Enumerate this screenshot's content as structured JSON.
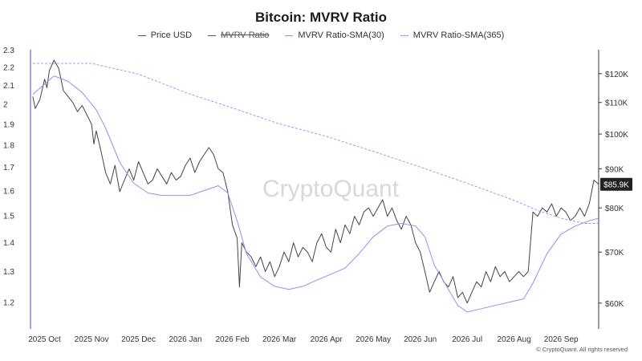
{
  "chart_data": {
    "type": "line",
    "title": "Bitcoin: MVRV Ratio",
    "legend": [
      {
        "name": "Price USD",
        "style": "solid",
        "color": "#555555",
        "enabled": true
      },
      {
        "name": "MVRV Ratio",
        "style": "solid",
        "color": "#555555",
        "enabled": false
      },
      {
        "name": "MVRV Ratio-SMA(30)",
        "style": "solid",
        "color": "#9b8cf0",
        "enabled": true
      },
      {
        "name": "MVRV Ratio-SMA(365)",
        "style": "dashed",
        "color": "#9b8cf0",
        "enabled": true
      }
    ],
    "legend_position": "top-center",
    "x_labels": [
      "2025 Oct",
      "2025 Nov",
      "2025 Dec",
      "2026 Jan",
      "2026 Feb",
      "2026 Mar",
      "2026 Apr",
      "2026 May",
      "2026 Jun",
      "2026 Jul",
      "2026 Aug",
      "2026 Sep"
    ],
    "x_range_months": [
      -0.3,
      11.8
    ],
    "left_axis": {
      "ticks": [
        1.2,
        1.3,
        1.4,
        1.5,
        1.6,
        1.7,
        1.8,
        1.9,
        2,
        2.1,
        2.2,
        2.3
      ],
      "range": [
        1.12,
        2.3
      ],
      "scale": "log"
    },
    "right_axis": {
      "ticks": [
        "$60K",
        "$70K",
        "$80K",
        "$90K",
        "$100K",
        "$110K",
        "$120K"
      ],
      "values": [
        60000,
        70000,
        80000,
        90000,
        100000,
        110000,
        120000
      ],
      "range": [
        55500,
        129000
      ],
      "scale": "log"
    },
    "current_price_label": "$85.9K",
    "current_price_value": 85900,
    "grid": false,
    "series": [
      {
        "name": "Price USD",
        "axis": "right",
        "points": [
          [
            -0.25,
            112000
          ],
          [
            -0.2,
            108000
          ],
          [
            -0.1,
            111000
          ],
          [
            0,
            118000
          ],
          [
            0.05,
            115000
          ],
          [
            0.1,
            121000
          ],
          [
            0.2,
            125000
          ],
          [
            0.3,
            122000
          ],
          [
            0.4,
            114000
          ],
          [
            0.5,
            112000
          ],
          [
            0.6,
            110000
          ],
          [
            0.7,
            107000
          ],
          [
            0.8,
            109000
          ],
          [
            0.9,
            106000
          ],
          [
            1.0,
            103000
          ],
          [
            1.05,
            97000
          ],
          [
            1.1,
            101000
          ],
          [
            1.2,
            95000
          ],
          [
            1.3,
            89000
          ],
          [
            1.4,
            86000
          ],
          [
            1.5,
            91000
          ],
          [
            1.6,
            84000
          ],
          [
            1.7,
            87000
          ],
          [
            1.8,
            90000
          ],
          [
            1.9,
            87000
          ],
          [
            2.0,
            92000
          ],
          [
            2.1,
            89000
          ],
          [
            2.2,
            86000
          ],
          [
            2.3,
            87000
          ],
          [
            2.4,
            90000
          ],
          [
            2.5,
            88000
          ],
          [
            2.6,
            86000
          ],
          [
            2.7,
            89000
          ],
          [
            2.8,
            87000
          ],
          [
            2.9,
            88000
          ],
          [
            3.0,
            91000
          ],
          [
            3.1,
            93000
          ],
          [
            3.2,
            89000
          ],
          [
            3.3,
            92000
          ],
          [
            3.5,
            96000
          ],
          [
            3.6,
            94000
          ],
          [
            3.7,
            90000
          ],
          [
            3.8,
            89000
          ],
          [
            3.9,
            84000
          ],
          [
            4.0,
            76000
          ],
          [
            4.1,
            73000
          ],
          [
            4.15,
            63000
          ],
          [
            4.2,
            72000
          ],
          [
            4.3,
            70000
          ],
          [
            4.4,
            69000
          ],
          [
            4.5,
            67000
          ],
          [
            4.6,
            69000
          ],
          [
            4.7,
            66000
          ],
          [
            4.8,
            68000
          ],
          [
            4.9,
            65000
          ],
          [
            5.0,
            67000
          ],
          [
            5.1,
            70000
          ],
          [
            5.2,
            68000
          ],
          [
            5.3,
            72000
          ],
          [
            5.4,
            69000
          ],
          [
            5.5,
            71000
          ],
          [
            5.6,
            70000
          ],
          [
            5.7,
            68000
          ],
          [
            5.8,
            72000
          ],
          [
            5.9,
            74000
          ],
          [
            6.0,
            71000
          ],
          [
            6.1,
            70000
          ],
          [
            6.2,
            75000
          ],
          [
            6.3,
            72000
          ],
          [
            6.4,
            76000
          ],
          [
            6.5,
            74000
          ],
          [
            6.6,
            78000
          ],
          [
            6.7,
            76000
          ],
          [
            6.8,
            79000
          ],
          [
            6.9,
            80000
          ],
          [
            7.0,
            78000
          ],
          [
            7.1,
            80000
          ],
          [
            7.2,
            82000
          ],
          [
            7.3,
            78000
          ],
          [
            7.4,
            80000
          ],
          [
            7.5,
            77000
          ],
          [
            7.6,
            75000
          ],
          [
            7.7,
            78000
          ],
          [
            7.8,
            76000
          ],
          [
            7.9,
            72000
          ],
          [
            8.0,
            70000
          ],
          [
            8.1,
            66000
          ],
          [
            8.2,
            62000
          ],
          [
            8.3,
            64000
          ],
          [
            8.4,
            66000
          ],
          [
            8.5,
            64000
          ],
          [
            8.6,
            63000
          ],
          [
            8.7,
            65000
          ],
          [
            8.8,
            61000
          ],
          [
            8.9,
            62000
          ],
          [
            9.0,
            60000
          ],
          [
            9.1,
            62000
          ],
          [
            9.2,
            64000
          ],
          [
            9.3,
            63000
          ],
          [
            9.4,
            66000
          ],
          [
            9.5,
            64000
          ],
          [
            9.6,
            67000
          ],
          [
            9.7,
            65000
          ],
          [
            9.8,
            66000
          ],
          [
            9.9,
            64000
          ],
          [
            10.0,
            65000
          ],
          [
            10.1,
            66000
          ],
          [
            10.2,
            65000
          ],
          [
            10.3,
            66000
          ],
          [
            10.4,
            79000
          ],
          [
            10.5,
            78000
          ],
          [
            10.6,
            80000
          ],
          [
            10.7,
            79000
          ],
          [
            10.8,
            81000
          ],
          [
            10.9,
            78000
          ],
          [
            11.0,
            80000
          ],
          [
            11.1,
            79000
          ],
          [
            11.2,
            77000
          ],
          [
            11.3,
            78000
          ],
          [
            11.4,
            80000
          ],
          [
            11.5,
            78000
          ],
          [
            11.6,
            81000
          ],
          [
            11.7,
            87000
          ],
          [
            11.8,
            85900
          ]
        ]
      },
      {
        "name": "MVRV Ratio-SMA(30)",
        "axis": "left",
        "points": [
          [
            -0.25,
            2.05
          ],
          [
            0.2,
            2.15
          ],
          [
            0.5,
            2.12
          ],
          [
            0.8,
            2.06
          ],
          [
            1.1,
            1.97
          ],
          [
            1.3,
            1.88
          ],
          [
            1.6,
            1.72
          ],
          [
            1.9,
            1.63
          ],
          [
            2.2,
            1.59
          ],
          [
            2.5,
            1.58
          ],
          [
            2.8,
            1.58
          ],
          [
            3.1,
            1.58
          ],
          [
            3.4,
            1.6
          ],
          [
            3.7,
            1.62
          ],
          [
            3.9,
            1.59
          ],
          [
            4.1,
            1.48
          ],
          [
            4.3,
            1.36
          ],
          [
            4.6,
            1.28
          ],
          [
            4.9,
            1.25
          ],
          [
            5.2,
            1.24
          ],
          [
            5.5,
            1.25
          ],
          [
            5.8,
            1.27
          ],
          [
            6.1,
            1.29
          ],
          [
            6.4,
            1.31
          ],
          [
            6.7,
            1.36
          ],
          [
            7.0,
            1.42
          ],
          [
            7.3,
            1.46
          ],
          [
            7.6,
            1.47
          ],
          [
            7.9,
            1.46
          ],
          [
            8.1,
            1.42
          ],
          [
            8.3,
            1.32
          ],
          [
            8.6,
            1.24
          ],
          [
            8.8,
            1.19
          ],
          [
            9.0,
            1.17
          ],
          [
            9.3,
            1.18
          ],
          [
            9.6,
            1.19
          ],
          [
            9.9,
            1.2
          ],
          [
            10.2,
            1.21
          ],
          [
            10.4,
            1.26
          ],
          [
            10.7,
            1.36
          ],
          [
            11.0,
            1.43
          ],
          [
            11.3,
            1.46
          ],
          [
            11.6,
            1.48
          ],
          [
            11.8,
            1.49
          ]
        ]
      },
      {
        "name": "MVRV Ratio-SMA(365)",
        "axis": "left",
        "points": [
          [
            -0.25,
            2.22
          ],
          [
            1.0,
            2.22
          ],
          [
            2.0,
            2.16
          ],
          [
            3.0,
            2.06
          ],
          [
            4.0,
            1.98
          ],
          [
            5.0,
            1.9
          ],
          [
            6.0,
            1.84
          ],
          [
            7.0,
            1.77
          ],
          [
            8.0,
            1.7
          ],
          [
            9.0,
            1.63
          ],
          [
            10.0,
            1.56
          ],
          [
            10.5,
            1.52
          ],
          [
            11.0,
            1.49
          ],
          [
            11.5,
            1.47
          ],
          [
            11.8,
            1.47
          ]
        ]
      }
    ],
    "watermark": "CryptoQuant",
    "copyright": "© CryptoQuant. All rights reserved"
  }
}
